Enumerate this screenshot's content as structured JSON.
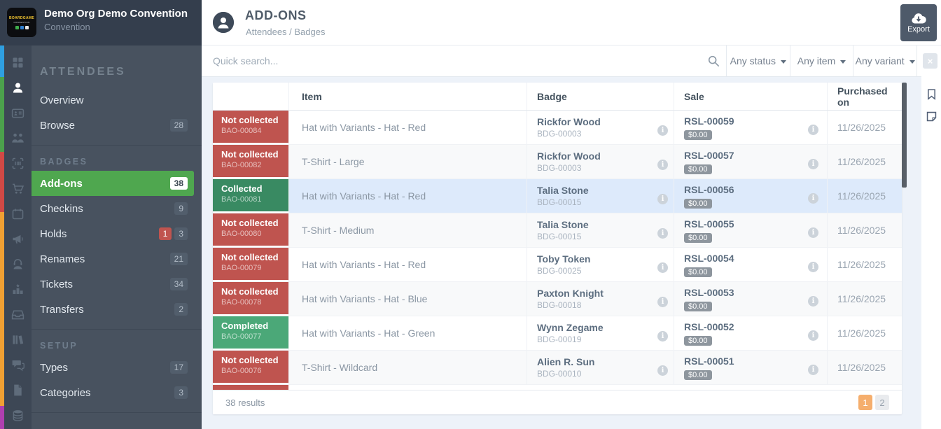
{
  "org": {
    "title": "Demo Org Demo Convention",
    "subtitle": "Convention",
    "logo_line1": "BOARDGAME",
    "logo_line2": "CONVENTION"
  },
  "sidebar": {
    "rail_icons": [
      "grid-icon",
      "person-icon",
      "id-card-icon",
      "people-icon",
      "barcode-scan-icon",
      "cart-icon",
      "calendar-icon",
      "megaphone-icon",
      "support-icon",
      "ranking-icon",
      "inbox-icon",
      "library-icon",
      "chat-icon",
      "document-icon",
      "coins-icon"
    ],
    "strip_colors": [
      "#2f9fe0",
      "#4ca14c",
      "#d14945",
      "#f0a033",
      "#b03fb0"
    ],
    "sections": [
      {
        "label": "ATTENDEES",
        "large": true,
        "items": [
          {
            "label": "Overview"
          },
          {
            "label": "Browse",
            "count": "28"
          }
        ]
      },
      {
        "label": "BADGES",
        "items": [
          {
            "label": "Add-ons",
            "count": "38",
            "active": true
          },
          {
            "label": "Checkins",
            "count": "9"
          },
          {
            "label": "Holds",
            "alert": "1",
            "count": "3"
          },
          {
            "label": "Renames",
            "count": "21"
          },
          {
            "label": "Tickets",
            "count": "34"
          },
          {
            "label": "Transfers",
            "count": "2"
          }
        ]
      },
      {
        "label": "SETUP",
        "items": [
          {
            "label": "Types",
            "count": "17"
          },
          {
            "label": "Categories",
            "count": "3"
          }
        ]
      }
    ]
  },
  "header": {
    "title": "ADD-ONS",
    "breadcrumb": "Attendees / Badges",
    "export_label": "Export"
  },
  "filters": {
    "search_placeholder": "Quick search...",
    "dropdowns": [
      "Any status",
      "Any item",
      "Any variant"
    ],
    "clear_label": "×"
  },
  "table": {
    "columns": {
      "item": "Item",
      "badge": "Badge",
      "sale": "Sale",
      "purchased": "Purchased on"
    },
    "rows": [
      {
        "status": "Not collected",
        "status_class": "red",
        "code": "BAO-00084",
        "item": "Hat with Variants - Hat - Red",
        "badge_name": "Rickfor Wood",
        "badge_code": "BDG-00003",
        "sale": "RSL-00059",
        "price": "$0.00",
        "date": "11/26/2025"
      },
      {
        "status": "Not collected",
        "status_class": "red",
        "code": "BAO-00082",
        "item": "T-Shirt - Large",
        "badge_name": "Rickfor Wood",
        "badge_code": "BDG-00003",
        "sale": "RSL-00057",
        "price": "$0.00",
        "date": "11/26/2025"
      },
      {
        "status": "Collected",
        "status_class": "green",
        "code": "BAO-00081",
        "item": "Hat with Variants - Hat - Red",
        "badge_name": "Talia Stone",
        "badge_code": "BDG-00015",
        "sale": "RSL-00056",
        "price": "$0.00",
        "date": "11/26/2025",
        "highlight": true
      },
      {
        "status": "Not collected",
        "status_class": "red",
        "code": "BAO-00080",
        "item": "T-Shirt - Medium",
        "badge_name": "Talia Stone",
        "badge_code": "BDG-00015",
        "sale": "RSL-00055",
        "price": "$0.00",
        "date": "11/26/2025"
      },
      {
        "status": "Not collected",
        "status_class": "red",
        "code": "BAO-00079",
        "item": "Hat with Variants - Hat - Red",
        "badge_name": "Toby Token",
        "badge_code": "BDG-00025",
        "sale": "RSL-00054",
        "price": "$0.00",
        "date": "11/26/2025"
      },
      {
        "status": "Not collected",
        "status_class": "red",
        "code": "BAO-00078",
        "item": "Hat with Variants - Hat - Blue",
        "badge_name": "Paxton Knight",
        "badge_code": "BDG-00018",
        "sale": "RSL-00053",
        "price": "$0.00",
        "date": "11/26/2025"
      },
      {
        "status": "Completed",
        "status_class": "green-light",
        "code": "BAO-00077",
        "item": "Hat with Variants - Hat - Green",
        "badge_name": "Wynn Zegame",
        "badge_code": "BDG-00019",
        "sale": "RSL-00052",
        "price": "$0.00",
        "date": "11/26/2025"
      },
      {
        "status": "Not collected",
        "status_class": "red",
        "code": "BAO-00076",
        "item": "T-Shirt - Wildcard",
        "badge_name": "Alien R. Sun",
        "badge_code": "BDG-00010",
        "sale": "RSL-00051",
        "price": "$0.00",
        "date": "11/26/2025"
      }
    ]
  },
  "footer": {
    "results": "38 results",
    "pages": [
      {
        "label": "1",
        "active": true
      },
      {
        "label": "2"
      }
    ]
  }
}
